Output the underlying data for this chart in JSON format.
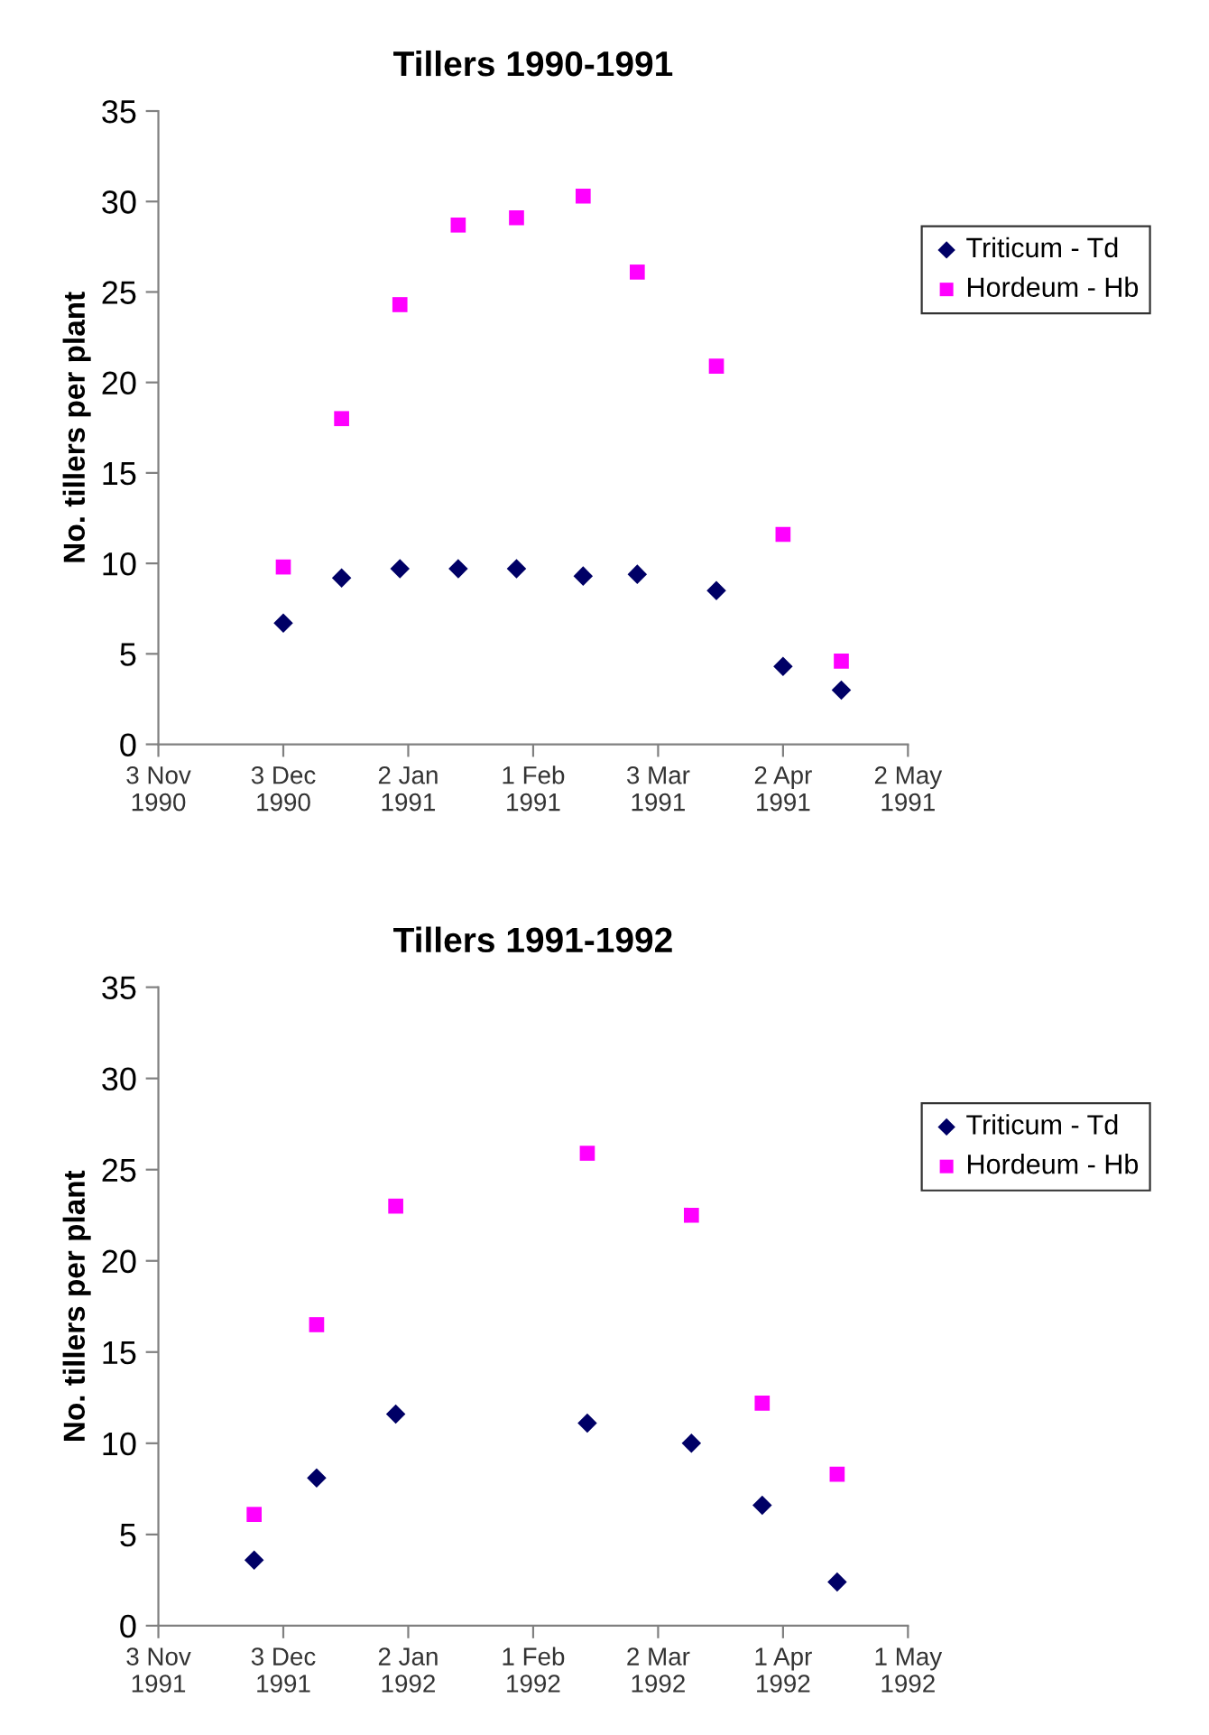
{
  "chart_data": [
    {
      "type": "scatter",
      "title": "Tillers 1990-1991",
      "ylabel": "No. tillers per plant",
      "xlim": [
        "1990-11-03",
        "1991-05-02"
      ],
      "xticks": [
        {
          "value": "1990-11-03",
          "label": "3 Nov\n1990"
        },
        {
          "value": "1990-12-03",
          "label": "3 Dec\n1990"
        },
        {
          "value": "1991-01-02",
          "label": "2 Jan\n1991"
        },
        {
          "value": "1991-02-01",
          "label": "1 Feb\n1991"
        },
        {
          "value": "1991-03-03",
          "label": "3 Mar\n1991"
        },
        {
          "value": "1991-04-02",
          "label": "2 Apr\n1991"
        },
        {
          "value": "1991-05-02",
          "label": "2 May\n1991"
        }
      ],
      "ylim": [
        0,
        35
      ],
      "yticks": [
        0,
        5,
        10,
        15,
        20,
        25,
        30,
        35
      ],
      "grid": false,
      "legend": "top right",
      "series": [
        {
          "name": "Triticum - Td",
          "color": "#000066",
          "marker": "diamond",
          "x": [
            "1990-12-03",
            "1990-12-17",
            "1990-12-31",
            "1991-01-14",
            "1991-01-28",
            "1991-02-13",
            "1991-02-26",
            "1991-03-17",
            "1991-04-02",
            "1991-04-16"
          ],
          "values": [
            6.7,
            9.2,
            9.7,
            9.7,
            9.7,
            9.3,
            9.4,
            8.5,
            4.3,
            3.0
          ]
        },
        {
          "name": "Hordeum - Hb",
          "color": "#ff00ff",
          "marker": "square",
          "x": [
            "1990-12-03",
            "1990-12-17",
            "1990-12-31",
            "1991-01-14",
            "1991-01-28",
            "1991-02-13",
            "1991-02-26",
            "1991-03-17",
            "1991-04-02",
            "1991-04-16"
          ],
          "values": [
            9.8,
            18.0,
            24.3,
            28.7,
            29.1,
            30.3,
            26.1,
            20.9,
            11.6,
            4.6
          ]
        }
      ]
    },
    {
      "type": "scatter",
      "title": "Tillers 1991-1992",
      "ylabel": "No. tillers per plant",
      "xlim": [
        "1991-11-03",
        "1992-05-01"
      ],
      "xticks": [
        {
          "value": "1991-11-03",
          "label": "3 Nov\n1991"
        },
        {
          "value": "1991-12-03",
          "label": "3 Dec\n1991"
        },
        {
          "value": "1992-01-02",
          "label": "2 Jan\n1992"
        },
        {
          "value": "1992-02-01",
          "label": "1 Feb\n1992"
        },
        {
          "value": "1992-03-02",
          "label": "2 Mar\n1992"
        },
        {
          "value": "1992-04-01",
          "label": "1 Apr\n1992"
        },
        {
          "value": "1992-05-01",
          "label": "1 May\n1992"
        }
      ],
      "ylim": [
        0,
        35
      ],
      "yticks": [
        0,
        5,
        10,
        15,
        20,
        25,
        30,
        35
      ],
      "grid": false,
      "legend": "top right",
      "series": [
        {
          "name": "Triticum - Td",
          "color": "#000066",
          "marker": "diamond",
          "x": [
            "1991-11-26",
            "1991-12-11",
            "1991-12-30",
            "1992-02-14",
            "1992-03-10",
            "1992-03-27",
            "1992-04-14"
          ],
          "values": [
            3.6,
            8.1,
            11.6,
            11.1,
            10.0,
            6.6,
            2.4
          ]
        },
        {
          "name": "Hordeum - Hb",
          "color": "#ff00ff",
          "marker": "square",
          "x": [
            "1991-11-26",
            "1991-12-11",
            "1991-12-30",
            "1992-02-14",
            "1992-03-10",
            "1992-03-27",
            "1992-04-14"
          ],
          "values": [
            6.1,
            16.5,
            23.0,
            25.9,
            22.5,
            12.2,
            8.3
          ]
        }
      ]
    }
  ]
}
